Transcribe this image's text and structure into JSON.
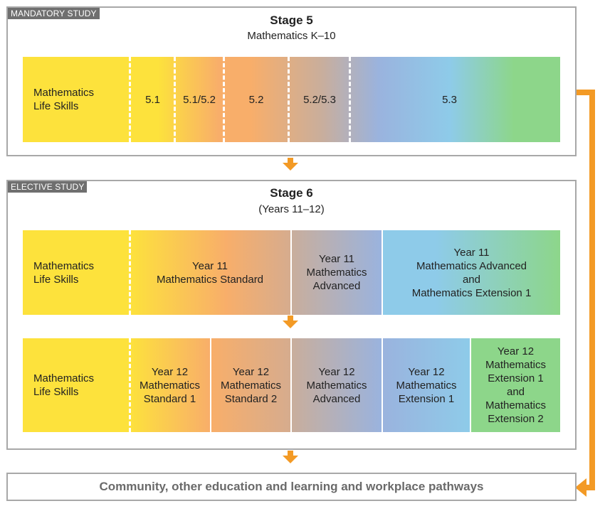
{
  "stage5": {
    "tag": "MANDATORY STUDY",
    "title": "Stage 5",
    "subtitle": "Mathematics K–10",
    "cells": [
      "Mathematics\nLife Skills",
      "5.1",
      "5.1/5.2",
      "5.2",
      "5.2/5.3",
      "5.3"
    ]
  },
  "stage6": {
    "tag": "ELECTIVE STUDY",
    "title": "Stage 6",
    "subtitle": "(Years 11–12)",
    "year11": [
      "Mathematics\nLife Skills",
      "Year 11\nMathematics Standard",
      "Year 11\nMathematics\nAdvanced",
      "Year 11\nMathematics Advanced\nand\nMathematics Extension 1"
    ],
    "year12": [
      "Mathematics\nLife Skills",
      "Year 12\nMathematics\nStandard 1",
      "Year 12\nMathematics\nStandard 2",
      "Year 12\nMathematics\nAdvanced",
      "Year 12\nMathematics\nExtension 1",
      "Year 12\nMathematics\nExtension 1\nand\nMathematics\nExtension 2"
    ]
  },
  "pathways": "Community, other education and learning and workplace pathways",
  "colors": {
    "yellow": "#fde23c",
    "orange": "#f8ae6a",
    "taupe": "#c9ae9c",
    "periwinkle": "#9ab3de",
    "sky": "#8ecbe9",
    "green": "#8dd68a",
    "arrow": "#f39a25",
    "border": "#a8a8a8",
    "tag": "#6f6f6f"
  }
}
